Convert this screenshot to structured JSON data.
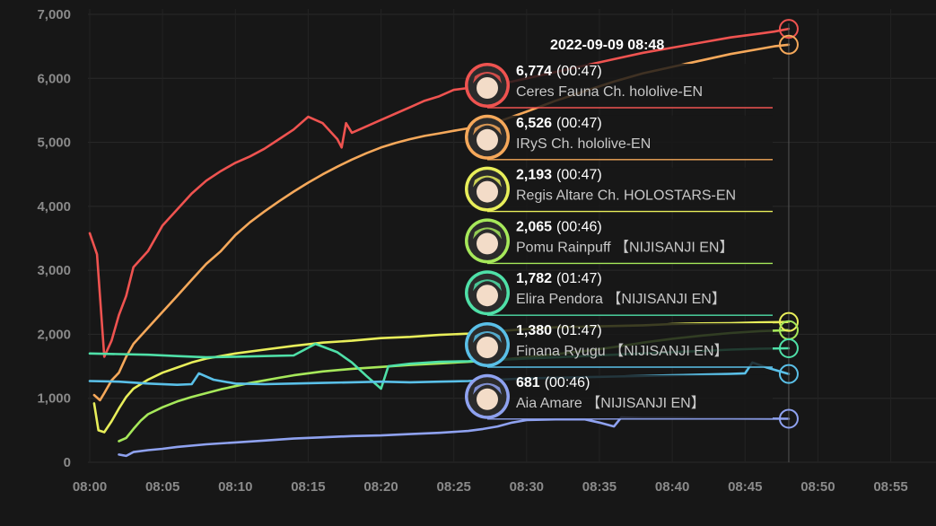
{
  "chart_data": {
    "type": "line",
    "x_ticks": [
      "08:00",
      "08:05",
      "08:10",
      "08:15",
      "08:20",
      "08:25",
      "08:30",
      "08:35",
      "08:40",
      "08:45",
      "08:50",
      "08:55"
    ],
    "y_ticks": [
      "0",
      "1,000",
      "2,000",
      "3,000",
      "4,000",
      "5,000",
      "6,000",
      "7,000"
    ],
    "ylim": [
      0,
      7000
    ],
    "xlim": [
      "08:00",
      "08:57"
    ],
    "grid": true,
    "cursor_time": "08:48",
    "tooltip": {
      "title": "2022-09-09 08:48",
      "entries": [
        {
          "value": "6,774",
          "time": "(00:47)",
          "name": "Ceres Fauna Ch. hololive-EN",
          "color": "#ef5350"
        },
        {
          "value": "6,526",
          "time": "(00:47)",
          "name": "IRyS Ch. hololive-EN",
          "color": "#f5a85a"
        },
        {
          "value": "2,193",
          "time": "(00:47)",
          "name": "Regis Altare Ch. HOLOSTARS-EN",
          "color": "#e8ee5a"
        },
        {
          "value": "2,065",
          "time": "(00:46)",
          "name": "Pomu Rainpuff 【NIJISANJI EN】",
          "color": "#a6e85a"
        },
        {
          "value": "1,782",
          "time": "(01:47)",
          "name": "Elira Pendora 【NIJISANJI EN】",
          "color": "#4fe0a8"
        },
        {
          "value": "1,380",
          "time": "(01:47)",
          "name": "Finana Ryugu 【NIJISANJI EN】",
          "color": "#5ac0e8"
        },
        {
          "value": "681",
          "time": "(00:46)",
          "name": "Aia Amare 【NIJISANJI EN】",
          "color": "#8fa2f0"
        }
      ]
    },
    "series": [
      {
        "color": "#ef5350",
        "points": [
          [
            "08:00",
            3580
          ],
          [
            "08:00.5",
            3250
          ],
          [
            "08:01",
            1650
          ],
          [
            "08:01.5",
            1900
          ],
          [
            "08:02",
            2300
          ],
          [
            "08:02.5",
            2600
          ],
          [
            "08:03",
            3050
          ],
          [
            "08:04",
            3300
          ],
          [
            "08:05",
            3700
          ],
          [
            "08:06",
            3950
          ],
          [
            "08:07",
            4200
          ],
          [
            "08:08",
            4400
          ],
          [
            "08:09",
            4550
          ],
          [
            "08:10",
            4680
          ],
          [
            "08:11",
            4780
          ],
          [
            "08:12",
            4900
          ],
          [
            "08:13",
            5050
          ],
          [
            "08:14",
            5200
          ],
          [
            "08:15",
            5400
          ],
          [
            "08:16",
            5300
          ],
          [
            "08:17",
            5050
          ],
          [
            "08:17.3",
            4920
          ],
          [
            "08:17.6",
            5300
          ],
          [
            "08:18",
            5150
          ],
          [
            "08:19",
            5250
          ],
          [
            "08:20",
            5350
          ],
          [
            "08:21",
            5450
          ],
          [
            "08:22",
            5550
          ],
          [
            "08:23",
            5650
          ],
          [
            "08:24",
            5720
          ],
          [
            "08:25",
            5820
          ],
          [
            "08:26",
            5850
          ],
          [
            "08:27",
            5880
          ],
          [
            "08:28",
            5920
          ],
          [
            "08:29",
            5950
          ],
          [
            "08:30",
            6000
          ],
          [
            "08:32",
            6100
          ],
          [
            "08:34",
            6200
          ],
          [
            "08:36",
            6300
          ],
          [
            "08:38",
            6400
          ],
          [
            "08:40",
            6480
          ],
          [
            "08:42",
            6560
          ],
          [
            "08:44",
            6640
          ],
          [
            "08:46",
            6700
          ],
          [
            "08:47",
            6730
          ],
          [
            "08:48",
            6774
          ]
        ]
      },
      {
        "color": "#f5a85a",
        "points": [
          [
            "08:00.3",
            1050
          ],
          [
            "08:00.7",
            970
          ],
          [
            "08:01",
            1080
          ],
          [
            "08:01.5",
            1280
          ],
          [
            "08:02",
            1400
          ],
          [
            "08:02.5",
            1650
          ],
          [
            "08:03",
            1850
          ],
          [
            "08:04",
            2100
          ],
          [
            "08:05",
            2350
          ],
          [
            "08:06",
            2600
          ],
          [
            "08:07",
            2850
          ],
          [
            "08:08",
            3100
          ],
          [
            "08:09",
            3300
          ],
          [
            "08:10",
            3550
          ],
          [
            "08:11",
            3750
          ],
          [
            "08:12",
            3920
          ],
          [
            "08:13",
            4080
          ],
          [
            "08:14",
            4230
          ],
          [
            "08:15",
            4370
          ],
          [
            "08:16",
            4500
          ],
          [
            "08:17",
            4620
          ],
          [
            "08:18",
            4730
          ],
          [
            "08:19",
            4830
          ],
          [
            "08:20",
            4920
          ],
          [
            "08:21",
            4990
          ],
          [
            "08:22",
            5050
          ],
          [
            "08:23",
            5100
          ],
          [
            "08:24",
            5140
          ],
          [
            "08:25",
            5180
          ],
          [
            "08:26",
            5220
          ],
          [
            "08:28",
            5320
          ],
          [
            "08:30",
            5480
          ],
          [
            "08:32",
            5650
          ],
          [
            "08:34",
            5800
          ],
          [
            "08:36",
            5950
          ],
          [
            "08:38",
            6080
          ],
          [
            "08:40",
            6180
          ],
          [
            "08:42",
            6280
          ],
          [
            "08:44",
            6380
          ],
          [
            "08:46",
            6460
          ],
          [
            "08:47",
            6500
          ],
          [
            "08:48",
            6526
          ]
        ]
      },
      {
        "color": "#e8ee5a",
        "points": [
          [
            "08:00.3",
            920
          ],
          [
            "08:00.6",
            500
          ],
          [
            "08:01",
            470
          ],
          [
            "08:01.5",
            640
          ],
          [
            "08:02",
            840
          ],
          [
            "08:02.5",
            1020
          ],
          [
            "08:03",
            1150
          ],
          [
            "08:04",
            1290
          ],
          [
            "08:05",
            1400
          ],
          [
            "08:06",
            1480
          ],
          [
            "08:07",
            1560
          ],
          [
            "08:08",
            1620
          ],
          [
            "08:10",
            1700
          ],
          [
            "08:12",
            1760
          ],
          [
            "08:14",
            1820
          ],
          [
            "08:16",
            1870
          ],
          [
            "08:18",
            1900
          ],
          [
            "08:20",
            1940
          ],
          [
            "08:22",
            1960
          ],
          [
            "08:24",
            1990
          ],
          [
            "08:26",
            2010
          ],
          [
            "08:28",
            2050
          ],
          [
            "08:30",
            2080
          ],
          [
            "08:32",
            2110
          ],
          [
            "08:34",
            2120
          ],
          [
            "08:36",
            2130
          ],
          [
            "08:38",
            2140
          ],
          [
            "08:40",
            2160
          ],
          [
            "08:42",
            2170
          ],
          [
            "08:44",
            2175
          ],
          [
            "08:46",
            2185
          ],
          [
            "08:48",
            2193
          ]
        ]
      },
      {
        "color": "#a6e85a",
        "points": [
          [
            "08:02",
            330
          ],
          [
            "08:02.5",
            380
          ],
          [
            "08:03",
            520
          ],
          [
            "08:03.5",
            650
          ],
          [
            "08:04",
            750
          ],
          [
            "08:05",
            860
          ],
          [
            "08:06",
            950
          ],
          [
            "08:07",
            1020
          ],
          [
            "08:08",
            1080
          ],
          [
            "08:09",
            1140
          ],
          [
            "08:10",
            1190
          ],
          [
            "08:11",
            1240
          ],
          [
            "08:12",
            1280
          ],
          [
            "08:13",
            1320
          ],
          [
            "08:14",
            1360
          ],
          [
            "08:15",
            1390
          ],
          [
            "08:16",
            1420
          ],
          [
            "08:18",
            1460
          ],
          [
            "08:20",
            1490
          ],
          [
            "08:22",
            1520
          ],
          [
            "08:24",
            1545
          ],
          [
            "08:26",
            1570
          ],
          [
            "08:28",
            1600
          ],
          [
            "08:30",
            1640
          ],
          [
            "08:32",
            1690
          ],
          [
            "08:34",
            1740
          ],
          [
            "08:36",
            1800
          ],
          [
            "08:38",
            1870
          ],
          [
            "08:40",
            1930
          ],
          [
            "08:42",
            1980
          ],
          [
            "08:44",
            2020
          ],
          [
            "08:46",
            2050
          ],
          [
            "08:48",
            2065
          ]
        ]
      },
      {
        "color": "#4fe0a8",
        "points": [
          [
            "08:00",
            1700
          ],
          [
            "08:02",
            1690
          ],
          [
            "08:04",
            1680
          ],
          [
            "08:06",
            1660
          ],
          [
            "08:08",
            1640
          ],
          [
            "08:10",
            1650
          ],
          [
            "08:12",
            1660
          ],
          [
            "08:14",
            1670
          ],
          [
            "08:15.5",
            1850
          ],
          [
            "08:17",
            1720
          ],
          [
            "08:18",
            1560
          ],
          [
            "08:19",
            1350
          ],
          [
            "08:20",
            1150
          ],
          [
            "08:20.5",
            1500
          ],
          [
            "08:22",
            1540
          ],
          [
            "08:24",
            1570
          ],
          [
            "08:26",
            1580
          ],
          [
            "08:28",
            1600
          ],
          [
            "08:30",
            1620
          ],
          [
            "08:32",
            1640
          ],
          [
            "08:34",
            1660
          ],
          [
            "08:36",
            1680
          ],
          [
            "08:38",
            1700
          ],
          [
            "08:40",
            1720
          ],
          [
            "08:42",
            1740
          ],
          [
            "08:44",
            1760
          ],
          [
            "08:46",
            1775
          ],
          [
            "08:48",
            1782
          ]
        ]
      },
      {
        "color": "#5ac0e8",
        "points": [
          [
            "08:00",
            1270
          ],
          [
            "08:02",
            1260
          ],
          [
            "08:04",
            1230
          ],
          [
            "08:06",
            1210
          ],
          [
            "08:07",
            1220
          ],
          [
            "08:07.5",
            1390
          ],
          [
            "08:08.5",
            1290
          ],
          [
            "08:10",
            1230
          ],
          [
            "08:12",
            1220
          ],
          [
            "08:14",
            1230
          ],
          [
            "08:16",
            1240
          ],
          [
            "08:18",
            1250
          ],
          [
            "08:20",
            1260
          ],
          [
            "08:22",
            1250
          ],
          [
            "08:24",
            1260
          ],
          [
            "08:26",
            1270
          ],
          [
            "08:28",
            1290
          ],
          [
            "08:30",
            1310
          ],
          [
            "08:32",
            1320
          ],
          [
            "08:34",
            1330
          ],
          [
            "08:36",
            1340
          ],
          [
            "08:38",
            1350
          ],
          [
            "08:40",
            1360
          ],
          [
            "08:42",
            1370
          ],
          [
            "08:44",
            1380
          ],
          [
            "08:45",
            1390
          ],
          [
            "08:45.5",
            1560
          ],
          [
            "08:46.5",
            1480
          ],
          [
            "08:48",
            1380
          ]
        ]
      },
      {
        "color": "#8fa2f0",
        "points": [
          [
            "08:02",
            120
          ],
          [
            "08:02.5",
            100
          ],
          [
            "08:03",
            160
          ],
          [
            "08:04",
            190
          ],
          [
            "08:05",
            210
          ],
          [
            "08:06",
            240
          ],
          [
            "08:08",
            280
          ],
          [
            "08:10",
            310
          ],
          [
            "08:12",
            340
          ],
          [
            "08:14",
            370
          ],
          [
            "08:16",
            390
          ],
          [
            "08:18",
            410
          ],
          [
            "08:20",
            420
          ],
          [
            "08:22",
            440
          ],
          [
            "08:24",
            460
          ],
          [
            "08:26",
            490
          ],
          [
            "08:27",
            520
          ],
          [
            "08:28",
            560
          ],
          [
            "08:29",
            620
          ],
          [
            "08:30",
            660
          ],
          [
            "08:32",
            670
          ],
          [
            "08:34",
            670
          ],
          [
            "08:35",
            620
          ],
          [
            "08:36",
            560
          ],
          [
            "08:36.5",
            700
          ],
          [
            "08:38",
            690
          ],
          [
            "08:40",
            690
          ],
          [
            "08:42",
            685
          ],
          [
            "08:44",
            685
          ],
          [
            "08:46",
            683
          ],
          [
            "08:48",
            681
          ]
        ]
      }
    ]
  }
}
